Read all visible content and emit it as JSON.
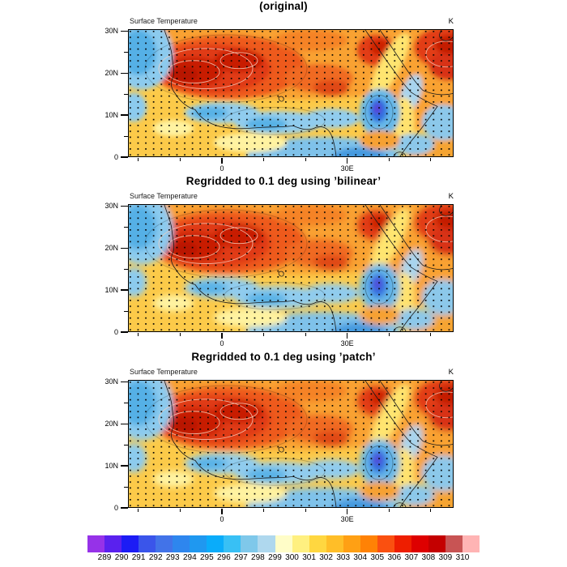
{
  "panels": [
    {
      "title": "(original)",
      "field_label": "Surface Temperature",
      "units_label": "K"
    },
    {
      "title": "Regridded to 0.1 deg using ’bilinear’",
      "field_label": "Surface Temperature",
      "units_label": "K"
    },
    {
      "title": "Regridded to 0.1 deg using ’patch’",
      "field_label": "Surface Temperature",
      "units_label": "K"
    }
  ],
  "axes": {
    "y_tick_labels": [
      "30N",
      "20N",
      "10N",
      "0"
    ],
    "lat_major": [
      30,
      20,
      10,
      0
    ],
    "lat_minor": [
      25,
      15,
      5
    ],
    "x_tick_labels": [
      "0",
      "30E"
    ],
    "lon_major": [
      0,
      30
    ],
    "lon_minor": [
      -20,
      -10,
      10,
      20,
      40,
      50
    ],
    "lat_view_max": 30.5,
    "lon_view": [
      -22.5,
      55.5
    ]
  },
  "colorbar": {
    "tick_labels": [
      "289",
      "290",
      "291",
      "292",
      "293",
      "294",
      "295",
      "296",
      "297",
      "298",
      "299",
      "300",
      "301",
      "302",
      "303",
      "304",
      "305",
      "306",
      "307",
      "308",
      "309",
      "310"
    ],
    "colors": [
      "#9632E8",
      "#5A21EE",
      "#1C1CF5",
      "#3A55EA",
      "#4273E8",
      "#2E86EE",
      "#1F98F0",
      "#0AACFA",
      "#38C0F5",
      "#7FC8EA",
      "#AFD8EE",
      "#FFFDC8",
      "#FFF080",
      "#FFD740",
      "#FFBE28",
      "#FFA014",
      "#FF8205",
      "#FA5010",
      "#EE1E00",
      "#DE0000",
      "#C40000",
      "#C85454",
      "#FFB4B4"
    ]
  },
  "chart_data": {
    "type": "heatmap",
    "title": "(original)",
    "panels": [
      "(original)",
      "Regridded to 0.1 deg using ’bilinear’",
      "Regridded to 0.1 deg using ’patch’"
    ],
    "variable": "Surface Temperature",
    "units": "K",
    "lat_range": [
      0,
      30
    ],
    "lon_range": [
      -22.5,
      55.5
    ],
    "lat_ticks": [
      "0",
      "10N",
      "20N",
      "30N"
    ],
    "lon_ticks": [
      "0",
      "30E"
    ],
    "levels": [
      289,
      290,
      291,
      292,
      293,
      294,
      295,
      296,
      297,
      298,
      299,
      300,
      301,
      302,
      303,
      304,
      305,
      306,
      307,
      308,
      309,
      310
    ],
    "level_colors": [
      "#9632E8",
      "#5A21EE",
      "#1C1CF5",
      "#3A55EA",
      "#4273E8",
      "#2E86EE",
      "#1F98F0",
      "#0AACFA",
      "#38C0F5",
      "#7FC8EA",
      "#AFD8EE",
      "#FFFDC8",
      "#FFF080",
      "#FFD740",
      "#FFBE28",
      "#FFA014",
      "#FF8205",
      "#FA5010",
      "#EE1E00",
      "#DE0000",
      "#C40000",
      "#C85454",
      "#FFB4B4"
    ],
    "legend_position": "bottom labelbar",
    "grid": false,
    "features": [
      "hot region 303-310 K over the Sahara centered near 20N, 10W-20E with closed contour cores",
      "hot region over the west Arabian Peninsula and the far north-east corner of the domain",
      "cool pool 293-297 K over the Atlantic off north-west Africa near 22-30N",
      "cool band 296-299 K along the Guinea coast and Sahel near 5-10N",
      "cold core 289-294 K over the Ethiopian highlands near 8N, 37E",
      "cool band along the bottom (equatorial) edge near 10-35E",
      "warm yellow band along the Red Sea trough",
      "uniform black stippling dots across the whole domain",
      "coastlines of West Africa, Gulf of Guinea, Red Sea, Arabia, Horn of Africa, Lake Chad and Lake Victoria overlaid",
      "all three panels show nearly identical fields; regridded versions are slightly smoother"
    ]
  }
}
